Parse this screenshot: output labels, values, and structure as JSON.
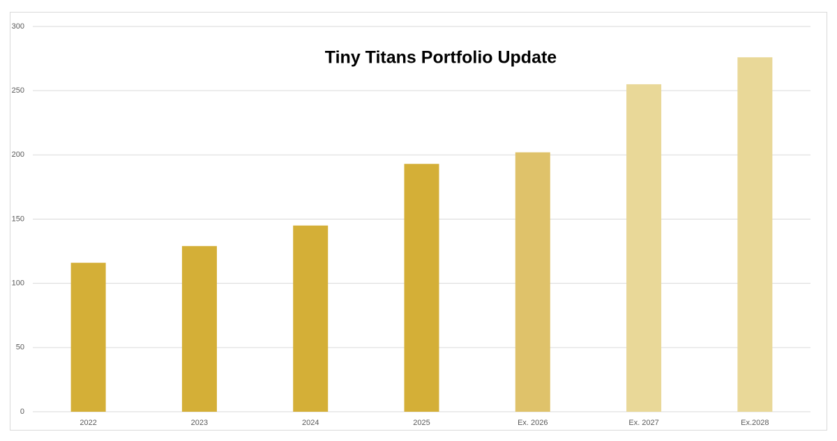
{
  "chart_data": {
    "type": "bar",
    "title": "Tiny Titans Portfolio Update",
    "categories": [
      "2022",
      "2023",
      "2024",
      "2025",
      "Ex. 2026",
      "Ex. 2027",
      "Ex.2028"
    ],
    "values": [
      116,
      129,
      145,
      193,
      202,
      255,
      276
    ],
    "colors": [
      "#d4af37",
      "#d4af37",
      "#d4af37",
      "#d4af37",
      "#dfc26a",
      "#e9d898",
      "#e9d898"
    ],
    "ylim": [
      0,
      300
    ],
    "yticks": [
      0,
      50,
      100,
      150,
      200,
      250,
      300
    ],
    "grid": true
  }
}
